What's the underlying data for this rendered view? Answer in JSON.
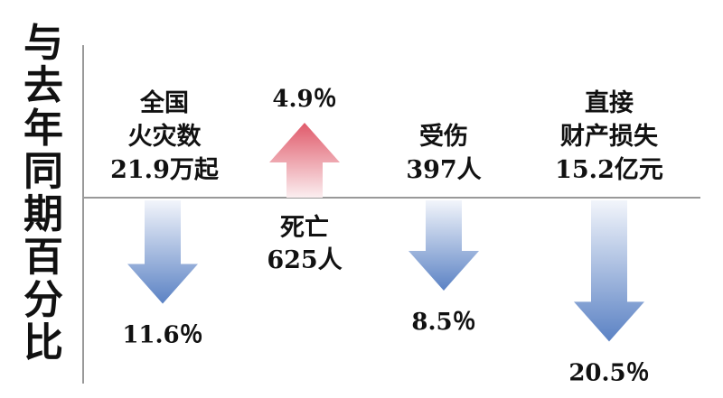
{
  "chart_data": {
    "type": "bar",
    "ylabel": "与去年同期百分比",
    "categories": [
      [
        "全国",
        "火灾数",
        "21.9万起"
      ],
      [
        "死亡",
        "625人"
      ],
      [
        "受伤",
        "397人"
      ],
      [
        "直接",
        "财产损失",
        "15.2亿元"
      ]
    ],
    "values": [
      -11.6,
      4.9,
      -8.5,
      -20.5
    ],
    "value_labels": [
      "11.6％",
      "4.9％",
      "8.5％",
      "20.5％"
    ],
    "colors": {
      "increase": "#e05a6a",
      "decrease": "#5b82c4",
      "axis": "#999999"
    }
  }
}
